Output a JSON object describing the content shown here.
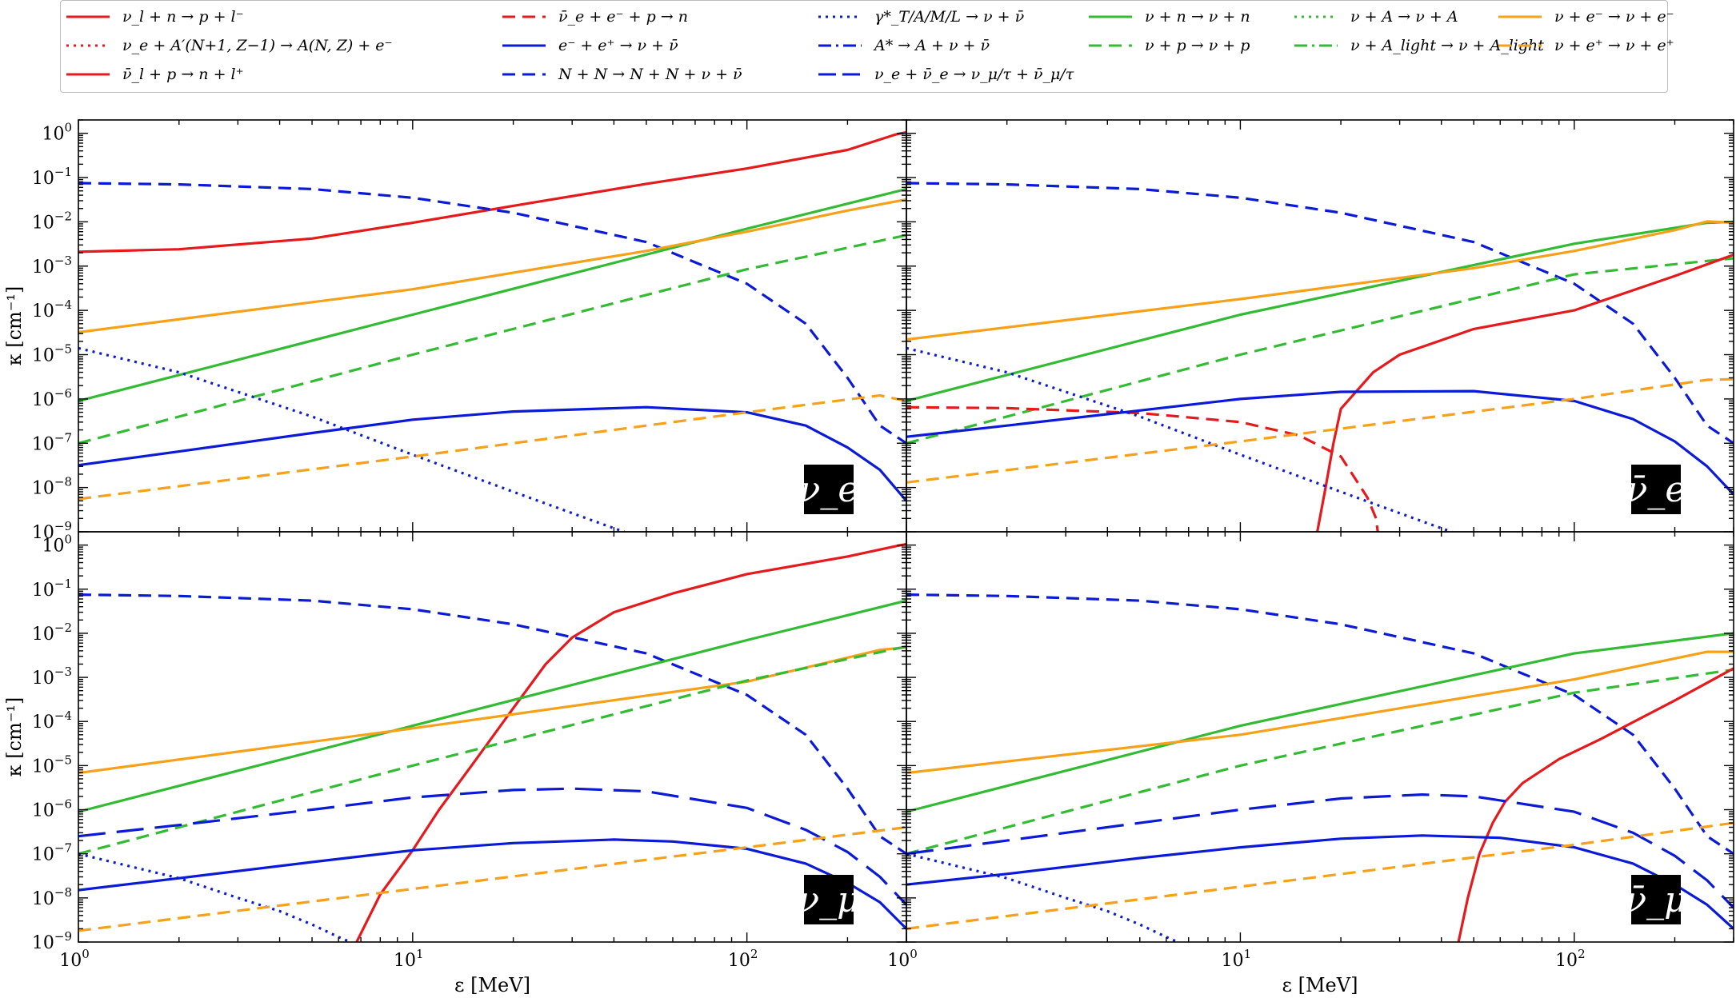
{
  "chart_data": {
    "type": "line",
    "xscale": "log",
    "yscale": "log",
    "xlim": [
      1,
      300
    ],
    "ylim": [
      1e-09,
      2
    ],
    "xlabel": "ε [MeV]",
    "ylabel": "κ [cm⁻¹]",
    "xticks": [
      "10^0",
      "10^1",
      "10^2"
    ],
    "yticks": [
      "10^-9",
      "10^-8",
      "10^-7",
      "10^-6",
      "10^-5",
      "10^-4",
      "10^-3",
      "10^-2",
      "10^-1",
      "10^0"
    ],
    "legend": [
      {
        "id": "cc_capture",
        "label": "ν_l + n → p + l⁻",
        "color": "#e41a1c",
        "dash": "solid"
      },
      {
        "id": "nucl_capture",
        "label": "ν_e + A′(N+1, Z−1) → A(N, Z) + e⁻",
        "color": "#e41a1c",
        "dash": "dotted"
      },
      {
        "id": "cc_anti",
        "label": "ν̄_l + p → n + l⁺",
        "color": "#e41a1c",
        "dash": "solid"
      },
      {
        "id": "inv_beta",
        "label": "ν̄_e + e⁻ + p → n",
        "color": "#e41a1c",
        "dash": "dashed"
      },
      {
        "id": "pair",
        "label": "e⁻ + e⁺ → ν + ν̄",
        "color": "#0a1ad6",
        "dash": "solid"
      },
      {
        "id": "brems",
        "label": "N + N → N + N + ν + ν̄",
        "color": "#0a1ad6",
        "dash": "dashed"
      },
      {
        "id": "plasmon",
        "label": "γ*_T/A/M/L → ν + ν̄",
        "color": "#0a1ad6",
        "dash": "dotted"
      },
      {
        "id": "nucl_deexc",
        "label": "A* → A + ν + ν̄",
        "color": "#0a1ad6",
        "dash": "dashdot"
      },
      {
        "id": "annihil",
        "label": "ν_e + ν̄_e → ν_μ/τ + ν̄_μ/τ",
        "color": "#0a1ad6",
        "dash": "longdash"
      },
      {
        "id": "scat_n",
        "label": "ν + n → ν + n",
        "color": "#33bb33",
        "dash": "solid"
      },
      {
        "id": "scat_p",
        "label": "ν + p → ν + p",
        "color": "#33bb33",
        "dash": "dashed"
      },
      {
        "id": "coh_A",
        "label": "ν + A → ν + A",
        "color": "#33bb33",
        "dash": "dotted"
      },
      {
        "id": "coh_light",
        "label": "ν + A_light → ν + A_light",
        "color": "#33bb33",
        "dash": "dashdot"
      },
      {
        "id": "scat_em",
        "label": "ν + e⁻ → ν + e⁻",
        "color": "#f5a11a",
        "dash": "solid"
      },
      {
        "id": "scat_ep",
        "label": "ν + e⁺ → ν + e⁺",
        "color": "#f5a11a",
        "dash": "dashed"
      }
    ],
    "panels": [
      {
        "name": "nu_e",
        "badge": "ν_e",
        "series": [
          {
            "ref": "cc_capture",
            "x": [
              1,
              2,
              5,
              10,
              20,
              50,
              100,
              200,
              280,
              300
            ],
            "y": [
              0.0021,
              0.0024,
              0.0042,
              0.0095,
              0.023,
              0.072,
              0.16,
              0.42,
              0.95,
              1.05
            ]
          },
          {
            "ref": "brems",
            "x": [
              1,
              2,
              5,
              10,
              20,
              50,
              100,
              150,
              200,
              250,
              300
            ],
            "y": [
              0.075,
              0.07,
              0.055,
              0.035,
              0.016,
              0.0035,
              0.0004,
              5e-05,
              3e-06,
              2.5e-07,
              1e-07
            ]
          },
          {
            "ref": "scat_n",
            "x": [
              1,
              10,
              100,
              300
            ],
            "y": [
              9e-07,
              8e-05,
              0.007,
              0.055
            ]
          },
          {
            "ref": "scat_em",
            "x": [
              1,
              10,
              50,
              100,
              200,
              300
            ],
            "y": [
              3.2e-05,
              0.0003,
              0.0022,
              0.006,
              0.018,
              0.032
            ]
          },
          {
            "ref": "scat_p",
            "x": [
              1,
              10,
              100,
              300
            ],
            "y": [
              1e-07,
              1e-05,
              0.00085,
              0.005
            ]
          },
          {
            "ref": "plasmon",
            "x": [
              1,
              2,
              5,
              10,
              20,
              40,
              43
            ],
            "y": [
              1.4e-05,
              4e-06,
              4e-07,
              5.5e-08,
              8e-09,
              1.2e-09,
              1e-09
            ]
          },
          {
            "ref": "pair",
            "x": [
              1,
              2,
              5,
              10,
              20,
              50,
              100,
              150,
              200,
              250,
              300
            ],
            "y": [
              3.2e-08,
              6.5e-08,
              1.7e-07,
              3.4e-07,
              5.2e-07,
              6.5e-07,
              5e-07,
              2.5e-07,
              8e-08,
              2.5e-08,
              5e-09
            ]
          },
          {
            "ref": "scat_ep",
            "x": [
              1,
              10,
              100,
              250,
              300
            ],
            "y": [
              5.5e-09,
              5e-08,
              5e-07,
              1.2e-06,
              9e-07
            ]
          }
        ]
      },
      {
        "name": "nu_e_bar",
        "badge": "ν̄_e",
        "series": [
          {
            "ref": "brems",
            "x": [
              1,
              2,
              5,
              10,
              20,
              50,
              100,
              150,
              200,
              250,
              300
            ],
            "y": [
              0.075,
              0.07,
              0.055,
              0.035,
              0.016,
              0.0035,
              0.0004,
              5e-05,
              3e-06,
              2.5e-07,
              1e-07
            ]
          },
          {
            "ref": "scat_n",
            "x": [
              1,
              10,
              100,
              250,
              300
            ],
            "y": [
              9e-07,
              8e-05,
              0.0032,
              0.0095,
              0.01
            ]
          },
          {
            "ref": "scat_em",
            "x": [
              1,
              10,
              50,
              100,
              200,
              250,
              300
            ],
            "y": [
              2.2e-05,
              0.00018,
              0.0009,
              0.0022,
              0.0065,
              0.0102,
              0.0095
            ]
          },
          {
            "ref": "scat_p",
            "x": [
              1,
              10,
              100,
              300
            ],
            "y": [
              1e-07,
              1e-05,
              0.00065,
              0.0015
            ]
          },
          {
            "ref": "cc_anti",
            "x": [
              17,
              18,
              19,
              20,
              25,
              30,
              50,
              100,
              200,
              300
            ],
            "y": [
              1e-09,
              1e-08,
              1e-07,
              6e-07,
              4e-06,
              1e-05,
              3.8e-05,
              0.0001,
              0.0006,
              0.0018
            ]
          },
          {
            "ref": "inv_beta",
            "x": [
              1,
              2,
              5,
              10,
              15,
              20,
              24,
              25.5,
              25.8
            ],
            "y": [
              6.5e-07,
              6.2e-07,
              4.8e-07,
              3e-07,
              1.5e-07,
              5e-08,
              6e-09,
              2e-09,
              1e-09
            ]
          },
          {
            "ref": "plasmon",
            "x": [
              1,
              2,
              5,
              10,
              20,
              40,
              43
            ],
            "y": [
              1.4e-05,
              4e-06,
              4e-07,
              5.5e-08,
              8e-09,
              1.2e-09,
              1e-09
            ]
          },
          {
            "ref": "pair",
            "x": [
              1,
              2,
              5,
              10,
              20,
              50,
              100,
              150,
              200,
              250,
              300
            ],
            "y": [
              1.4e-07,
              2.5e-07,
              5.5e-07,
              1e-06,
              1.45e-06,
              1.5e-06,
              9e-07,
              3.5e-07,
              1.1e-07,
              3e-08,
              7e-09
            ]
          },
          {
            "ref": "scat_ep",
            "x": [
              1,
              10,
              100,
              250,
              300
            ],
            "y": [
              1.3e-08,
              1.1e-07,
              1e-06,
              2.7e-06,
              2.8e-06
            ]
          }
        ]
      },
      {
        "name": "nu_mu",
        "badge": "ν_μ",
        "series": [
          {
            "ref": "cc_capture",
            "x": [
              6.8,
              8,
              10,
              12,
              15,
              20,
              25,
              30,
              40,
              60,
              100,
              200,
              280,
              300
            ],
            "y": [
              1e-09,
              1.2e-08,
              1.2e-07,
              1e-06,
              1e-05,
              0.0002,
              0.002,
              0.008,
              0.03,
              0.08,
              0.22,
              0.55,
              0.95,
              1.05
            ]
          },
          {
            "ref": "brems",
            "x": [
              1,
              2,
              5,
              10,
              20,
              50,
              100,
              150,
              200,
              250,
              300
            ],
            "y": [
              0.075,
              0.07,
              0.055,
              0.035,
              0.016,
              0.0035,
              0.0004,
              5e-05,
              3e-06,
              2.5e-07,
              1e-07
            ]
          },
          {
            "ref": "scat_n",
            "x": [
              1,
              10,
              100,
              300
            ],
            "y": [
              9e-07,
              8e-05,
              0.007,
              0.055
            ]
          },
          {
            "ref": "scat_em",
            "x": [
              1,
              10,
              100,
              250,
              300
            ],
            "y": [
              6.8e-06,
              7e-05,
              0.0008,
              0.0042,
              0.0048
            ]
          },
          {
            "ref": "scat_p",
            "x": [
              1,
              10,
              100,
              300
            ],
            "y": [
              1e-07,
              1e-05,
              0.00085,
              0.005
            ]
          },
          {
            "ref": "annihil",
            "x": [
              1,
              2,
              5,
              10,
              20,
              30,
              50,
              100,
              150,
              200,
              250,
              300
            ],
            "y": [
              2.5e-07,
              4.5e-07,
              1e-06,
              1.9e-06,
              2.8e-06,
              3e-06,
              2.6e-06,
              1.1e-06,
              3.5e-07,
              1.1e-07,
              3e-08,
              7e-09
            ]
          },
          {
            "ref": "pair",
            "x": [
              1,
              2,
              5,
              10,
              20,
              40,
              60,
              100,
              150,
              200,
              250,
              300
            ],
            "y": [
              1.5e-08,
              2.8e-08,
              6.5e-08,
              1.2e-07,
              1.75e-07,
              2.1e-07,
              1.9e-07,
              1.3e-07,
              6e-08,
              2.2e-08,
              8e-09,
              2e-09
            ]
          },
          {
            "ref": "plasmon",
            "x": [
              1,
              2,
              3,
              4,
              5,
              6,
              6.5
            ],
            "y": [
              1e-07,
              2.8e-08,
              1e-08,
              5e-09,
              2.5e-09,
              1.3e-09,
              1e-09
            ]
          },
          {
            "ref": "scat_ep",
            "x": [
              1,
              10,
              100,
              300
            ],
            "y": [
              1.8e-09,
              1.6e-08,
              1.4e-07,
              4e-07
            ]
          }
        ]
      },
      {
        "name": "nu_mu_bar",
        "badge": "ν̄_μ",
        "series": [
          {
            "ref": "brems",
            "x": [
              1,
              2,
              5,
              10,
              20,
              50,
              100,
              150,
              200,
              250,
              300
            ],
            "y": [
              0.075,
              0.07,
              0.055,
              0.035,
              0.016,
              0.0035,
              0.0004,
              5e-05,
              3e-06,
              2.5e-07,
              1e-07
            ]
          },
          {
            "ref": "scat_n",
            "x": [
              1,
              10,
              100,
              300
            ],
            "y": [
              9e-07,
              8e-05,
              0.0035,
              0.01
            ]
          },
          {
            "ref": "scat_em",
            "x": [
              1,
              10,
              100,
              250,
              300
            ],
            "y": [
              6.8e-06,
              5e-05,
              0.0009,
              0.0038,
              0.0038
            ]
          },
          {
            "ref": "scat_p",
            "x": [
              1,
              10,
              100,
              300
            ],
            "y": [
              1e-07,
              1e-05,
              0.00045,
              0.0015
            ]
          },
          {
            "ref": "cc_anti",
            "x": [
              45,
              48,
              52,
              57,
              62,
              70,
              90,
              120,
              200,
              300
            ],
            "y": [
              1e-09,
              1e-08,
              1e-07,
              5e-07,
              1.5e-06,
              4e-06,
              1.4e-05,
              4e-05,
              0.0003,
              0.0016
            ]
          },
          {
            "ref": "annihil",
            "x": [
              1,
              2,
              5,
              10,
              20,
              35,
              50,
              100,
              150,
              200,
              250,
              300
            ],
            "y": [
              1e-07,
              2e-07,
              5e-07,
              1e-06,
              1.8e-06,
              2.2e-06,
              2e-06,
              9e-07,
              3e-07,
              9e-08,
              2.5e-08,
              6e-09
            ]
          },
          {
            "ref": "pair",
            "x": [
              1,
              2,
              5,
              10,
              20,
              35,
              60,
              100,
              150,
              200,
              250,
              300
            ],
            "y": [
              2e-08,
              3.5e-08,
              8e-08,
              1.4e-07,
              2.2e-07,
              2.6e-07,
              2.3e-07,
              1.4e-07,
              6e-08,
              2e-08,
              7e-09,
              2e-09
            ]
          },
          {
            "ref": "plasmon",
            "x": [
              1,
              2,
              3,
              4,
              5,
              6,
              6.5
            ],
            "y": [
              1e-07,
              2.8e-08,
              1e-08,
              5e-09,
              2.5e-09,
              1.3e-09,
              1e-09
            ]
          },
          {
            "ref": "scat_ep",
            "x": [
              1,
              10,
              100,
              300
            ],
            "y": [
              2e-09,
              1.8e-08,
              1.6e-07,
              5e-07
            ]
          }
        ]
      }
    ]
  }
}
